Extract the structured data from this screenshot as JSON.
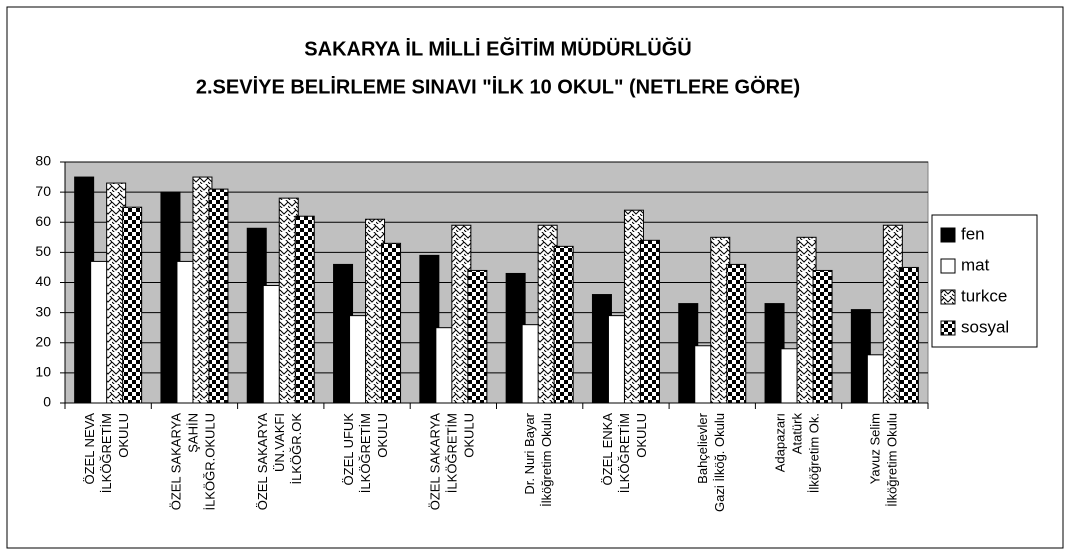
{
  "chart_data": {
    "type": "bar",
    "title": [
      "SAKARYA İL MİLLİ EĞİTİM MÜDÜRLÜĞÜ",
      "2.SEVİYE BELİRLEME SINAVI  \"İLK 10 OKUL\" (NETLERE GÖRE)"
    ],
    "categories": [
      "ÖZEL NEVA\nİLKÖĞRETİM\nOKULU",
      "ÖZEL SAKARYA\nŞAHİN\nİLKÖĞR.OKULU",
      "ÖZEL SAKARYA\nÜN.VAKFI\nİLKÖĞR.OK",
      "ÖZEL UFUK\nİLKÖĞRETİM\nOKULU",
      "ÖZEL SAKARYA\nİLKÖĞRETİM\nOKULU",
      "Dr. Nuri Bayar\nİlköğretim Okulu",
      "ÖZEL ENKA\nİLKÖĞRETİM\nOKULU",
      "Bahçelievler\nGazi İlköğ. Okulu",
      "Adapazarı\nAtatürk\nİlköğretim Ok.",
      "Yavuz Selim\nİlköğretim Okulu"
    ],
    "series": [
      {
        "name": "fen",
        "color": "#000000",
        "pattern": "solid",
        "values": [
          75,
          70,
          58,
          46,
          49,
          43,
          36,
          33,
          33,
          31
        ]
      },
      {
        "name": "mat",
        "color": "#ffffff",
        "pattern": "solid",
        "values": [
          47,
          47,
          39,
          29,
          25,
          26,
          29,
          19,
          18,
          16
        ]
      },
      {
        "name": "turkce",
        "color": "#ffffff",
        "pattern": "zigzag",
        "values": [
          73,
          75,
          68,
          61,
          59,
          59,
          64,
          55,
          55,
          59
        ]
      },
      {
        "name": "sosyal",
        "color": "#000000",
        "pattern": "checker",
        "values": [
          65,
          71,
          62,
          53,
          44,
          52,
          54,
          46,
          44,
          45
        ]
      }
    ],
    "ylim": [
      0,
      80
    ],
    "yticks": [
      0,
      10,
      20,
      30,
      40,
      50,
      60,
      70,
      80
    ],
    "grid": true,
    "legend": "right"
  }
}
